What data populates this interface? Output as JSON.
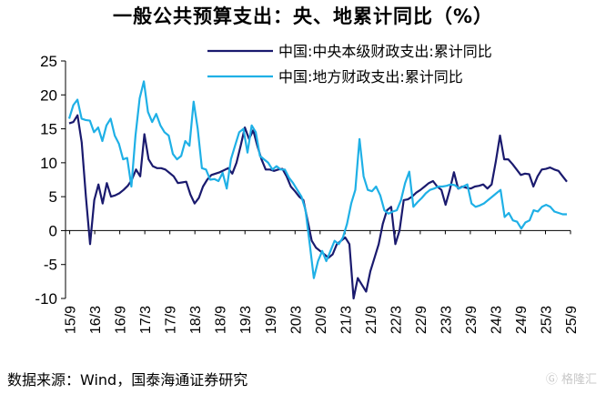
{
  "title": "一般公共预算支出：央、地累计同比（%）",
  "source": "数据来源：Wind，国泰海通证券研究",
  "watermark": "Ⓖ 格隆汇",
  "colors": {
    "central": "#1a1a6e",
    "local": "#1fb0e6",
    "axis": "#000000"
  },
  "chart_data": {
    "type": "line",
    "title": "一般公共预算支出：央、地累计同比（%）",
    "xlabel": "",
    "ylabel": "",
    "ylim": [
      -10,
      25
    ],
    "yticks": [
      "25",
      "20",
      "15",
      "10",
      "5",
      "0",
      "-5",
      "-10"
    ],
    "ytick_values": [
      25,
      20,
      15,
      10,
      5,
      0,
      -5,
      -10
    ],
    "xtick_labels": [
      "15/9",
      "16/3",
      "16/9",
      "17/3",
      "17/9",
      "18/3",
      "18/9",
      "19/3",
      "19/9",
      "20/3",
      "20/9",
      "21/3",
      "21/9",
      "22/3",
      "22/9",
      "23/3",
      "23/9",
      "24/3",
      "24/9",
      "25/3",
      "25/9"
    ],
    "x_start": "2015-08",
    "x_end": "2025-09",
    "legend_position": "top-right",
    "series": [
      {
        "name": "中国:中央本级财政支出:累计同比",
        "color": "#1a1a6e",
        "values": [
          15.8,
          16,
          17,
          13,
          5,
          -2,
          4.5,
          6.8,
          4,
          7,
          5,
          5.2,
          5.5,
          6,
          6.6,
          7.5,
          9,
          8,
          14.2,
          10.5,
          9.5,
          9.2,
          9.2,
          9,
          8.5,
          8,
          7,
          7.1,
          7.2,
          5.3,
          4,
          4.8,
          6.5,
          7.5,
          8.2,
          8.4,
          8.6,
          8.9,
          9.2,
          8.4,
          10,
          12.5,
          15.2,
          13.5,
          14.8,
          12.5,
          10.5,
          9,
          9,
          8.8,
          9,
          9.1,
          8,
          6.5,
          5.8,
          5,
          4.5,
          1.5,
          -1.5,
          -2.5,
          -3,
          -3.5,
          -4,
          -3.5,
          -2,
          -1.5,
          -1,
          -2,
          -10,
          -7,
          -8,
          -9,
          -6,
          -4,
          -2,
          1,
          3,
          3.5,
          -2,
          0,
          4.5,
          4.6,
          5,
          5.6,
          6,
          6.5,
          7,
          7.3,
          6.5,
          6,
          3.8,
          6,
          8.6,
          6.2,
          6.5,
          6.3,
          6.2,
          6.5,
          6.6,
          6.8,
          6.2,
          6.8,
          10.2,
          14,
          10.5,
          10.5,
          9.8,
          9,
          8.2,
          8.4,
          8.3,
          6.5,
          8,
          9,
          9.1,
          9.3,
          9,
          8.8,
          8,
          7.2
        ]
      },
      {
        "name": "中国:地方财政支出:累计同比",
        "color": "#1fb0e6",
        "values": [
          16.5,
          18.5,
          19.3,
          16.5,
          16.3,
          16.2,
          14.5,
          15.2,
          13.2,
          15.5,
          16.5,
          14,
          12.8,
          10.5,
          10.7,
          6.5,
          14,
          19.5,
          22,
          17.5,
          16,
          17.2,
          15.5,
          14.5,
          14,
          11.3,
          10.5,
          11,
          13.2,
          12.5,
          19,
          15,
          9.2,
          9,
          7.5,
          7.6,
          7.3,
          8.5,
          6.2,
          10.5,
          12.5,
          14.5,
          15,
          11.5,
          15.5,
          14.5,
          11,
          10.5,
          10,
          9,
          9.5,
          9,
          9,
          7.8,
          7,
          6,
          5,
          3,
          -2,
          -7,
          -4.5,
          -3,
          -4.5,
          -3,
          -1.5,
          -2,
          -1,
          1,
          4,
          6,
          13.5,
          8,
          6,
          5.8,
          6.5,
          5.2,
          3,
          2.5,
          2.8,
          3,
          4.5,
          7,
          8.7,
          3.5,
          4.2,
          4.8,
          5.5,
          6,
          6.2,
          6.5,
          6.5,
          6.6,
          6.8,
          6.7,
          6.2,
          6.5,
          6.8,
          4,
          3.5,
          3.7,
          4,
          4.5,
          5,
          5.5,
          6,
          2,
          2.6,
          1.5,
          1.3,
          0.3,
          1.2,
          1.5,
          3,
          2.8,
          3.5,
          3.8,
          3.5,
          2.8,
          2.6,
          2.4,
          2.4
        ]
      }
    ]
  }
}
